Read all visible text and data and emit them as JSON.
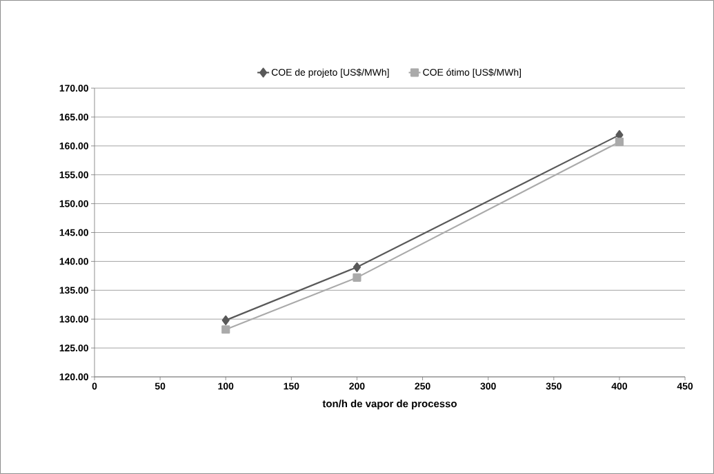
{
  "chart_data": {
    "type": "line",
    "xlabel": "ton/h de vapor de processo",
    "x": [
      100,
      200,
      400
    ],
    "series": [
      {
        "name": "COE de projeto [US$/MWh]",
        "color": "#595959",
        "marker": "diamond",
        "values": [
          129.8,
          139.0,
          161.9
        ]
      },
      {
        "name": "COE ótimo [US$/MWh]",
        "color": "#aaaaaa",
        "marker": "square",
        "values": [
          128.2,
          137.2,
          160.7
        ]
      }
    ],
    "xlim": [
      0,
      450
    ],
    "xticks": [
      0,
      50,
      100,
      150,
      200,
      250,
      300,
      350,
      400,
      450
    ],
    "ylim": [
      120,
      170
    ],
    "yticks": [
      {
        "value": 120,
        "label": "120.00"
      },
      {
        "value": 125,
        "label": "125.00"
      },
      {
        "value": 130,
        "label": "130.00"
      },
      {
        "value": 135,
        "label": "135.00"
      },
      {
        "value": 140,
        "label": "140.00"
      },
      {
        "value": 145,
        "label": "145.00"
      },
      {
        "value": 150,
        "label": "150.00"
      },
      {
        "value": 155,
        "label": "155.00"
      },
      {
        "value": 160,
        "label": "160.00"
      },
      {
        "value": 165,
        "label": "165.00"
      },
      {
        "value": 170,
        "label": "170.00"
      }
    ],
    "grid": "y",
    "legend": "top",
    "line_style": "solid"
  }
}
